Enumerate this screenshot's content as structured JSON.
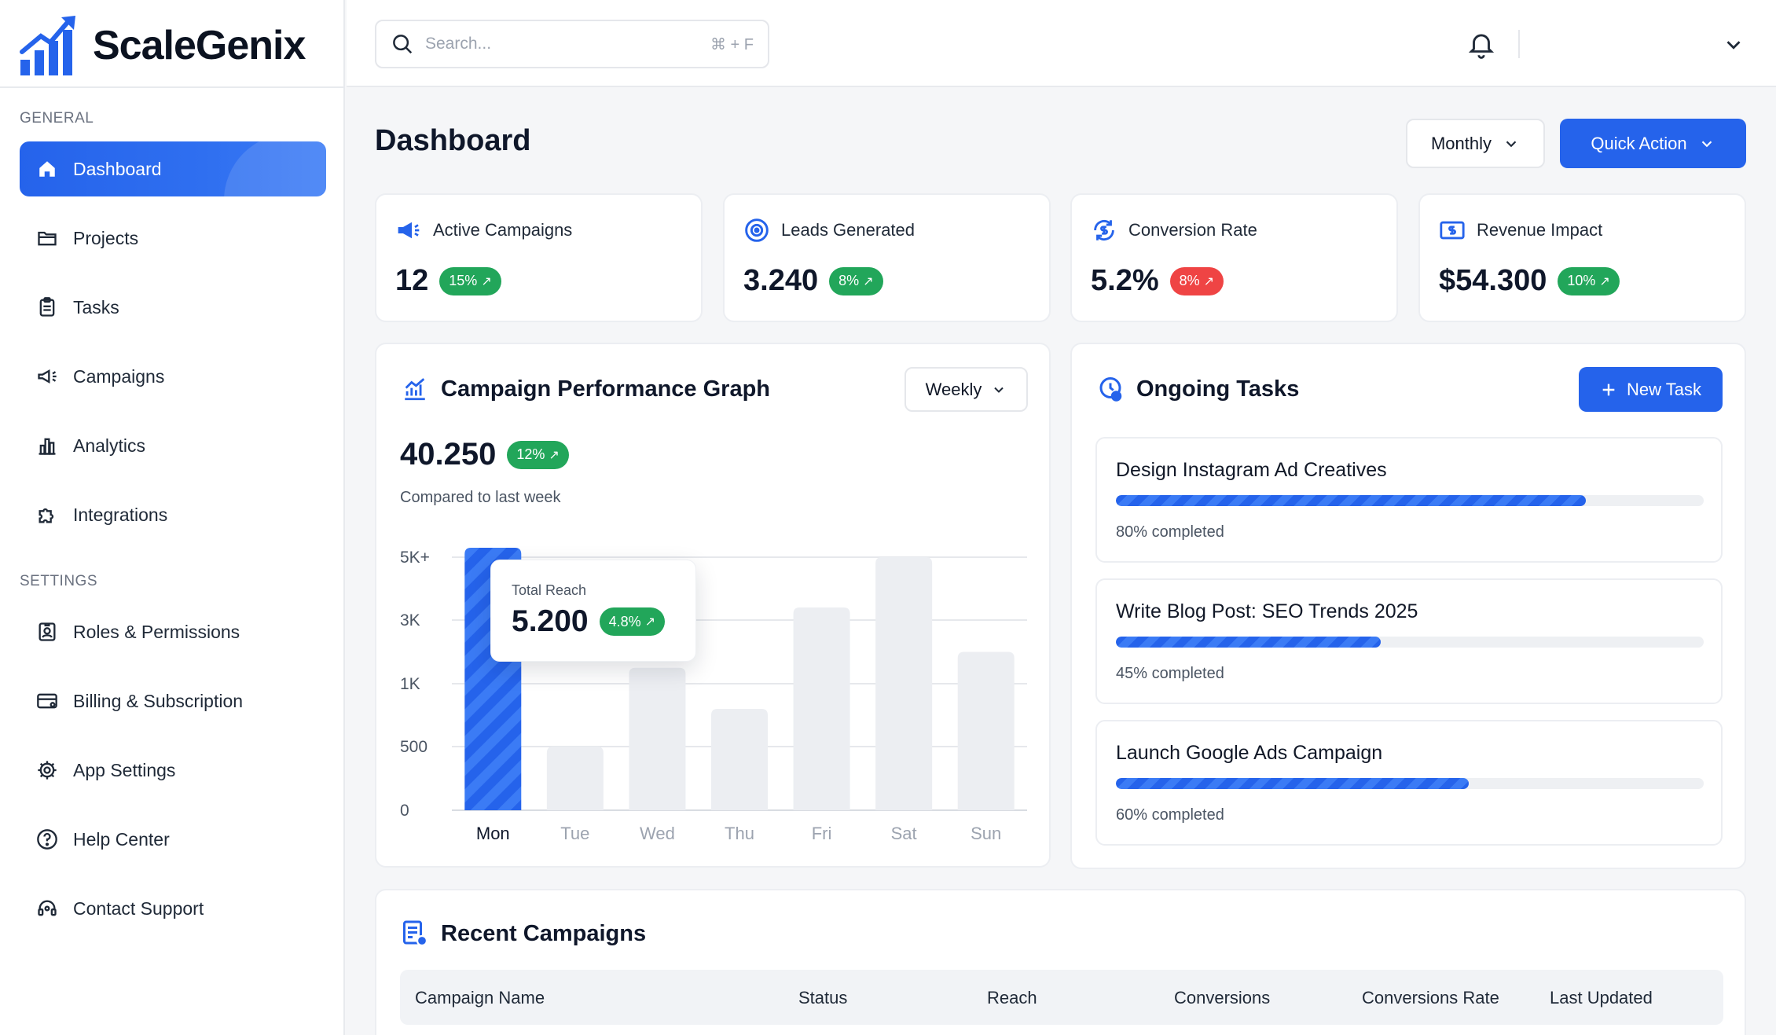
{
  "app": {
    "name": "ScaleGenix"
  },
  "sidebar": {
    "general_label": "GENERAL",
    "settings_label": "SETTINGS",
    "items": [
      {
        "label": "Dashboard",
        "icon": "home-icon",
        "active": true
      },
      {
        "label": "Projects",
        "icon": "folder-icon"
      },
      {
        "label": "Tasks",
        "icon": "clipboard-icon"
      },
      {
        "label": "Campaigns",
        "icon": "megaphone-icon"
      },
      {
        "label": "Analytics",
        "icon": "bar-chart-icon"
      },
      {
        "label": "Integrations",
        "icon": "puzzle-icon"
      }
    ],
    "settings_items": [
      {
        "label": "Roles & Permissions",
        "icon": "id-badge-icon"
      },
      {
        "label": "Billing & Subscription",
        "icon": "card-icon"
      },
      {
        "label": "App Settings",
        "icon": "gear-icon"
      },
      {
        "label": "Help Center",
        "icon": "help-circle-icon"
      },
      {
        "label": "Contact Support",
        "icon": "headset-icon"
      }
    ]
  },
  "header": {
    "search_placeholder": "Search...",
    "search_shortcut": "⌘ + F"
  },
  "main": {
    "title": "Dashboard",
    "period_button": "Monthly",
    "quick_action": "Quick Action",
    "stats": [
      {
        "label": "Active Campaigns",
        "value": "12",
        "change": "15%",
        "trend": "up",
        "color": "#22a65a"
      },
      {
        "label": "Leads Generated",
        "value": "3.240",
        "change": "8%",
        "trend": "up",
        "color": "#22a65a"
      },
      {
        "label": "Conversion Rate",
        "value": "5.2%",
        "change": "8%",
        "trend": "up",
        "color": "#ef4444"
      },
      {
        "label": "Revenue Impact",
        "value": "$54.300",
        "change": "10%",
        "trend": "up",
        "color": "#22a65a"
      }
    ],
    "performance": {
      "title": "Campaign Performance Graph",
      "period": "Weekly",
      "total": "40.250",
      "change": "12%",
      "compare": "Compared to last week",
      "tooltip": {
        "label": "Total Reach",
        "value": "5.200",
        "change": "4.8%"
      }
    },
    "tasks": {
      "title": "Ongoing Tasks",
      "new_button": "New Task",
      "items": [
        {
          "title": "Design Instagram Ad Creatives",
          "progress": 0.8,
          "sub": "80% completed"
        },
        {
          "title": "Write Blog Post: SEO Trends 2025",
          "progress": 0.45,
          "sub": "45% completed"
        },
        {
          "title": "Launch Google Ads Campaign",
          "progress": 0.6,
          "sub": "60% completed"
        }
      ]
    },
    "recent": {
      "title": "Recent Campaigns",
      "columns": [
        "Campaign Name",
        "Status",
        "Reach",
        "Conversions",
        "Conversions Rate",
        "Last Updated"
      ]
    }
  },
  "chart_data": {
    "type": "bar",
    "categories": [
      "Mon",
      "Tue",
      "Wed",
      "Thu",
      "Fri",
      "Sat",
      "Sun"
    ],
    "values": [
      5200,
      500,
      1500,
      800,
      3400,
      5000,
      2000
    ],
    "y_tick_labels": [
      "0",
      "500",
      "1K",
      "3K",
      "5K+"
    ],
    "highlighted": "Mon",
    "accent": "#2563eb",
    "muted": "#eceef2"
  }
}
